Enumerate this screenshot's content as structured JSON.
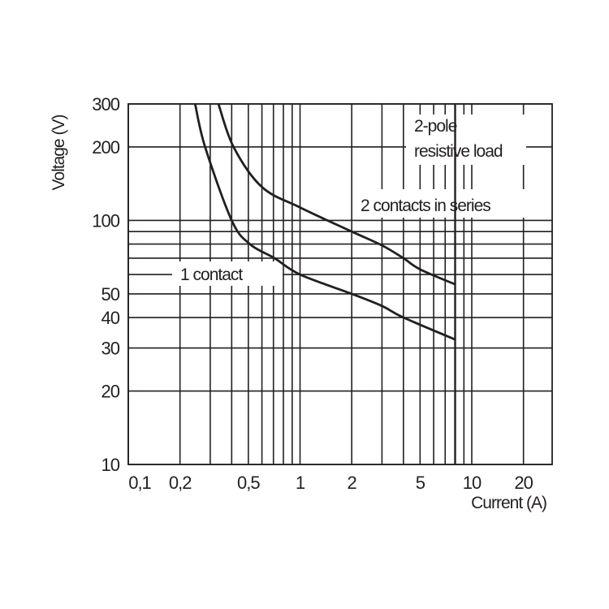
{
  "chart_data": {
    "type": "line",
    "title": "",
    "xlabel": "Current (A)",
    "ylabel": "Voltage (V)",
    "xscale": "log",
    "yscale": "log",
    "xlim": [
      0.1,
      30
    ],
    "ylim": [
      10,
      300
    ],
    "grid": true,
    "x_ticks": [
      0.1,
      0.2,
      0.5,
      1,
      2,
      5,
      10,
      20
    ],
    "x_tick_labels": [
      "0,1",
      "0,2",
      "0,5",
      "1",
      "2",
      "5",
      "10",
      "20"
    ],
    "y_ticks": [
      10,
      20,
      30,
      40,
      50,
      100,
      200,
      300
    ],
    "y_tick_labels": [
      "10",
      "20",
      "30",
      "40",
      "50",
      "100",
      "200",
      "300"
    ],
    "x_gridlines": [
      0.1,
      0.2,
      0.3,
      0.4,
      0.5,
      0.6,
      0.7,
      0.8,
      0.9,
      1,
      2,
      3,
      4,
      5,
      6,
      7,
      8,
      9,
      10,
      20
    ],
    "y_gridlines": [
      10,
      20,
      30,
      40,
      50,
      60,
      70,
      80,
      90,
      100,
      200,
      300
    ],
    "series": [
      {
        "name": "1 contact",
        "points": [
          [
            0.245,
            300
          ],
          [
            0.28,
            200
          ],
          [
            0.4,
            100
          ],
          [
            0.51,
            80
          ],
          [
            0.71,
            70
          ],
          [
            1.0,
            60
          ],
          [
            2,
            50
          ],
          [
            3,
            44.6
          ],
          [
            4,
            40
          ],
          [
            8,
            32.5
          ]
        ]
      },
      {
        "name": "2 contacts in series",
        "points": [
          [
            0.335,
            300
          ],
          [
            0.41,
            200
          ],
          [
            0.6,
            137
          ],
          [
            1,
            113
          ],
          [
            2,
            90
          ],
          [
            3,
            79
          ],
          [
            4,
            70
          ],
          [
            5,
            63
          ],
          [
            8,
            54.7
          ]
        ]
      }
    ],
    "annotations": {
      "line1": "2-pole",
      "line2": "resistive load"
    },
    "colors": {
      "ink": "#231f20",
      "background": "#ffffff"
    }
  }
}
